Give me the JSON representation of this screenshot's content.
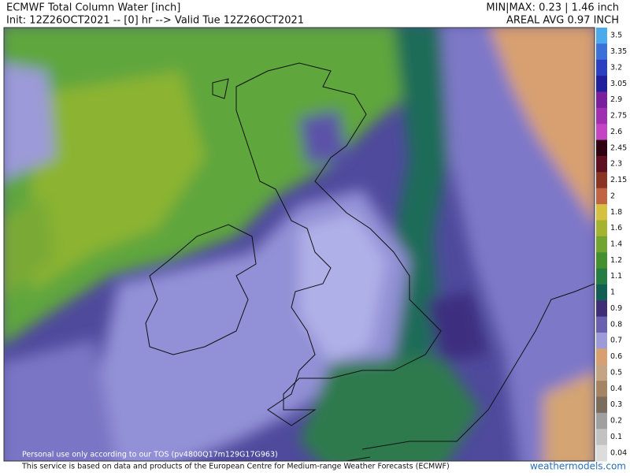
{
  "header": {
    "title": "ECMWF Total Column Water [inch]",
    "init": "Init: 12Z26OCT2021 -- [0] hr --> Valid Tue 12Z26OCT2021",
    "minmax": "MIN|MAX: 0.23 | 1.46 inch",
    "areal_avg": "AREAL AVG 0.97 INCH"
  },
  "colorbar": [
    {
      "label": "3.5",
      "color": "#4aaaec"
    },
    {
      "label": "3.35",
      "color": "#3a70d8"
    },
    {
      "label": "3.2",
      "color": "#2a40c0"
    },
    {
      "label": "3.05",
      "color": "#20209c"
    },
    {
      "label": "2.9",
      "color": "#7a1e9e"
    },
    {
      "label": "2.75",
      "color": "#a02eb0"
    },
    {
      "label": "2.6",
      "color": "#c444c4"
    },
    {
      "label": "2.45",
      "color": "#2e0010"
    },
    {
      "label": "2.3",
      "color": "#5e1020"
    },
    {
      "label": "2.15",
      "color": "#8a3424"
    },
    {
      "label": "2",
      "color": "#c06444"
    },
    {
      "label": "1.8",
      "color": "#d6c040"
    },
    {
      "label": "1.6",
      "color": "#a4b430"
    },
    {
      "label": "1.4",
      "color": "#72a432"
    },
    {
      "label": "1.2",
      "color": "#44902e"
    },
    {
      "label": "1.1",
      "color": "#247e44"
    },
    {
      "label": "1",
      "color": "#125e52"
    },
    {
      "label": "0.9",
      "color": "#3e2e78"
    },
    {
      "label": "0.8",
      "color": "#6a60b0"
    },
    {
      "label": "0.7",
      "color": "#9c9ad8"
    },
    {
      "label": "0.6",
      "color": "#d8a070"
    },
    {
      "label": "0.5",
      "color": "#c4a482"
    },
    {
      "label": "0.4",
      "color": "#a48462"
    },
    {
      "label": "0.3",
      "color": "#7c6c5c"
    },
    {
      "label": "0.2",
      "color": "#a0a0a0"
    },
    {
      "label": "0.1",
      "color": "#c2c2c2"
    },
    {
      "label": "0.04",
      "color": "#dcdcdc"
    }
  ],
  "watermark": "Personal use only according to our TOS (pv4800Q17m129G17G963)",
  "footer": {
    "credit": "This service is based on data and products of the European Centre for Medium-range Weather Forecasts (ECMWF)",
    "site": "weathermodels.com"
  }
}
